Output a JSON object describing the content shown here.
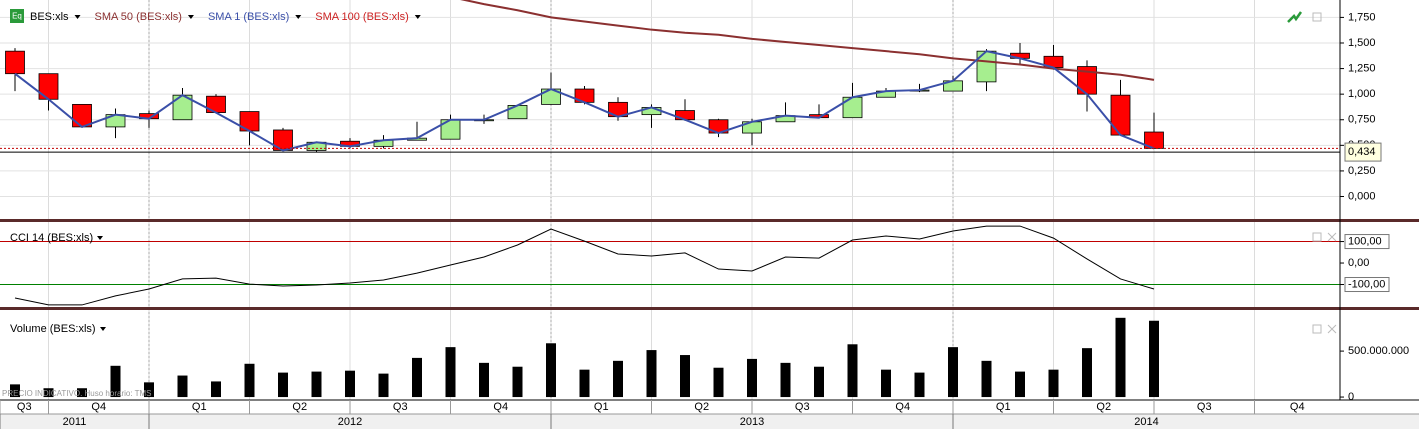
{
  "chart_data": [
    {
      "type": "candlestick",
      "name": "BES:xls",
      "up_color": "#a6ee8f",
      "down_color": "#ff0000",
      "open": [
        1.42,
        1.2,
        0.9,
        0.68,
        0.81,
        0.75,
        0.98,
        0.83,
        0.65,
        0.45,
        0.54,
        0.49,
        0.55,
        0.56,
        0.74,
        0.76,
        0.9,
        1.05,
        0.92,
        0.8,
        0.84,
        0.75,
        0.62,
        0.73,
        0.8,
        0.77,
        0.97,
        1.03,
        1.03,
        1.12,
        1.4,
        1.37,
        1.27,
        0.99,
        0.63
      ],
      "high": [
        1.45,
        1.2,
        0.9,
        0.86,
        0.84,
        1.06,
        1.0,
        0.83,
        0.67,
        0.53,
        0.57,
        0.6,
        0.73,
        0.8,
        0.8,
        0.89,
        1.21,
        1.08,
        0.97,
        0.9,
        0.95,
        0.76,
        0.76,
        0.92,
        0.9,
        1.11,
        1.06,
        1.1,
        1.18,
        1.44,
        1.5,
        1.48,
        1.33,
        1.14,
        0.82
      ],
      "low": [
        1.03,
        0.84,
        0.67,
        0.57,
        0.67,
        0.75,
        0.82,
        0.5,
        0.45,
        0.43,
        0.47,
        0.47,
        0.55,
        0.56,
        0.71,
        0.76,
        0.9,
        0.9,
        0.74,
        0.67,
        0.74,
        0.58,
        0.5,
        0.73,
        0.77,
        0.77,
        0.97,
        1.02,
        1.03,
        1.03,
        1.29,
        1.24,
        0.83,
        0.6,
        0.47
      ],
      "close": [
        1.2,
        0.95,
        0.68,
        0.8,
        0.76,
        0.99,
        0.82,
        0.64,
        0.45,
        0.53,
        0.49,
        0.55,
        0.57,
        0.75,
        0.75,
        0.89,
        1.05,
        0.92,
        0.78,
        0.87,
        0.75,
        0.62,
        0.73,
        0.79,
        0.77,
        0.97,
        1.03,
        1.04,
        1.13,
        1.42,
        1.35,
        1.26,
        1.0,
        0.6,
        0.47
      ],
      "overlays": [
        {
          "name": "SMA 50 (BES:xls)",
          "color": "#8b3030",
          "values": [
            null,
            null,
            null,
            null,
            null,
            null,
            null,
            null,
            null,
            null,
            null,
            null,
            null,
            1.95,
            1.88,
            1.82,
            1.75,
            1.71,
            1.67,
            1.63,
            1.6,
            1.58,
            1.54,
            1.51,
            1.48,
            1.45,
            1.42,
            1.39,
            1.35,
            1.32,
            1.29,
            1.25,
            1.22,
            1.19,
            1.14
          ]
        },
        {
          "name": "SMA 1 (BES:xls)",
          "color": "#3a4fa8",
          "values": [
            1.2,
            0.95,
            0.68,
            0.8,
            0.76,
            0.99,
            0.82,
            0.64,
            0.45,
            0.53,
            0.49,
            0.55,
            0.57,
            0.75,
            0.75,
            0.89,
            1.05,
            0.92,
            0.78,
            0.87,
            0.75,
            0.62,
            0.73,
            0.79,
            0.77,
            0.97,
            1.03,
            1.04,
            1.13,
            1.42,
            1.35,
            1.26,
            1.0,
            0.6,
            0.47
          ]
        },
        {
          "name": "SMA 100 (BES:xls)",
          "color": "#cc2222",
          "values": [
            null,
            null,
            null,
            null,
            null,
            null,
            null,
            null,
            null,
            null,
            null,
            null,
            null,
            null,
            null,
            null,
            null,
            null,
            null,
            null,
            null,
            null,
            null,
            null,
            null,
            null,
            null,
            null,
            null,
            null,
            null,
            null,
            null,
            null,
            null
          ]
        }
      ],
      "last_price": 0.434,
      "last_price_label": "0,434",
      "ylim": [
        -0.21,
        1.92
      ],
      "yticks": [
        {
          "value": 0,
          "label": "0,000"
        },
        {
          "value": 0.25,
          "label": "0,250"
        },
        {
          "value": 0.5,
          "label": "0,500"
        },
        {
          "value": 0.75,
          "label": "0,750"
        },
        {
          "value": 1,
          "label": "1,000"
        },
        {
          "value": 1.25,
          "label": "1,250"
        },
        {
          "value": 1.5,
          "label": "1,500"
        },
        {
          "value": 1.75,
          "label": "1,750"
        }
      ],
      "grid": true
    },
    {
      "type": "line",
      "name": "CCI 14 (BES:xls)",
      "color": "#000000",
      "values": [
        -163,
        -195,
        -195,
        -153,
        -121,
        -74,
        -70,
        -98,
        -107,
        -102,
        -93,
        -79,
        -47,
        -9,
        28,
        84,
        158,
        102,
        42,
        33,
        47,
        -28,
        -37,
        28,
        23,
        107,
        126,
        112,
        149,
        172,
        172,
        116,
        19,
        -74,
        -121
      ],
      "level_lines": [
        {
          "value": 100,
          "color": "#c00000"
        },
        {
          "value": -100,
          "color": "#008000"
        }
      ],
      "ylim": [
        -200,
        191
      ],
      "yticks": [
        {
          "value": 100,
          "label": "100,00"
        },
        {
          "value": 0,
          "label": "0,00"
        },
        {
          "value": -100,
          "label": "-100,00"
        }
      ]
    },
    {
      "type": "bar",
      "name": "Volume (BES:xls)",
      "color": "#000000",
      "values": [
        138000000,
        96000000,
        96000000,
        340000000,
        160000000,
        234000000,
        170000000,
        362000000,
        266000000,
        277000000,
        287000000,
        255000000,
        426000000,
        543000000,
        372000000,
        330000000,
        585000000,
        298000000,
        394000000,
        511000000,
        457000000,
        319000000,
        415000000,
        372000000,
        330000000,
        574000000,
        298000000,
        266000000,
        543000000,
        394000000,
        277000000,
        298000000,
        532000000,
        862000000,
        830000000
      ],
      "ylim": [
        -32000000,
        947000000
      ],
      "yticks": [
        0,
        {
          "value": 500000000,
          "label": "500.000.000"
        }
      ]
    }
  ],
  "x_axis": {
    "quarters": [
      "Q3",
      "Q4",
      "Q1",
      "Q2",
      "Q3",
      "Q4",
      "Q1",
      "Q2",
      "Q3",
      "Q4",
      "Q1",
      "Q2",
      "Q3",
      "Q4"
    ],
    "years": [
      "2011",
      "2012",
      "2013",
      "2014"
    ]
  },
  "watermark": "PRECIO INDICATIVO. Huso horario: TMS"
}
